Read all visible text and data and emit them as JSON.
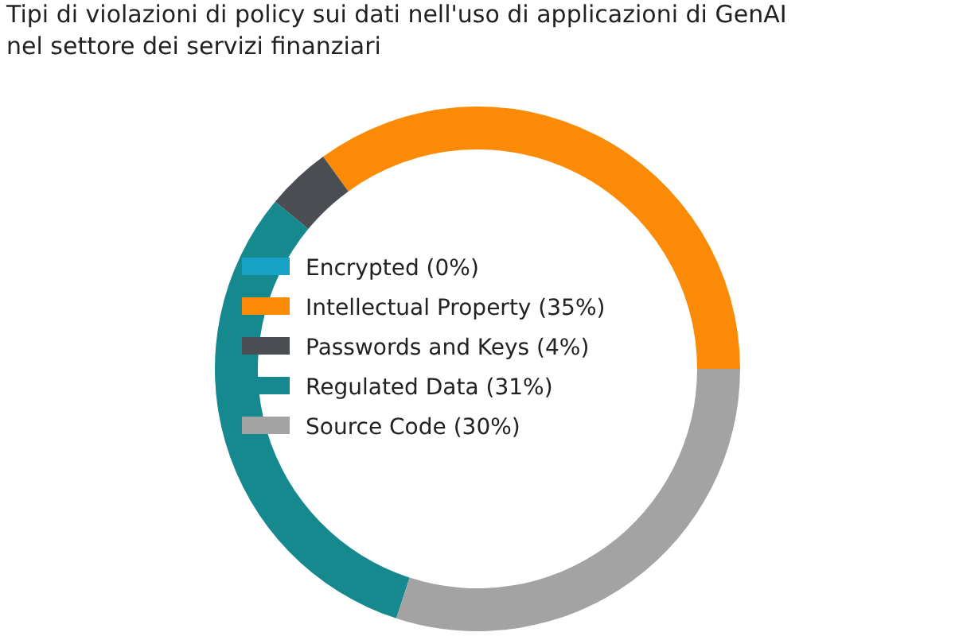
{
  "chart_data": {
    "type": "donut",
    "title": "Tipi di violazioni di policy sui dati nell'uso di applicazioni di GenAI\nnel settore dei servizi finanziari",
    "categories": [
      "Encrypted (0%)",
      "Intellectual Property (35%)",
      "Passwords and Keys (4%)",
      "Regulated Data (31%)",
      "Source Code (30%)"
    ],
    "values": [
      0,
      35,
      4,
      31,
      30
    ],
    "colors": [
      "#17a3c8",
      "#fb8b06",
      "#4a4d52",
      "#16898e",
      "#a3a3a3"
    ],
    "legend": "center"
  }
}
